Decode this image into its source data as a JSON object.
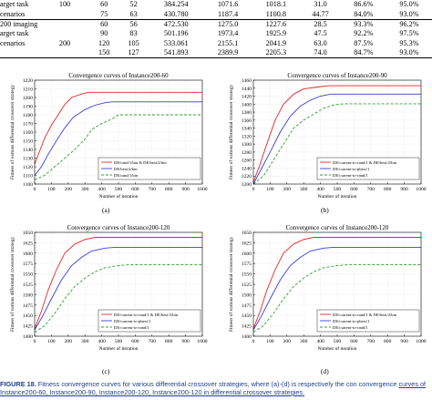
{
  "table": {
    "group_labels": [
      {
        "lines": [
          "arget task",
          "cenarios"
        ],
        "value": "100"
      },
      {
        "lines": [
          "200 imaging",
          "arget task",
          "cenarios"
        ],
        "value": "200"
      }
    ],
    "rows": [
      {
        "label": "",
        "group": "100",
        "cells": [
          "60",
          "52",
          "384.254",
          "1071.6",
          "1018.1",
          "31.0",
          "86.6%",
          "95.0%"
        ]
      },
      {
        "label": "",
        "group": "",
        "cells": [
          "75",
          "63",
          "430.780",
          "1187.4",
          "1100.8",
          "44.77",
          "84.0%",
          "93.0%"
        ]
      },
      {
        "label": "",
        "group": "",
        "cells": [
          "60",
          "56",
          "472.530",
          "1275.0",
          "1227.6",
          "28.5",
          "93.3%",
          "96.2%"
        ]
      },
      {
        "label": "",
        "group": "",
        "cells": [
          "90",
          "83",
          "501.196",
          "1973.4",
          "1925.9",
          "47.5",
          "92.2%",
          "97.5%"
        ]
      },
      {
        "label": "",
        "group": "200",
        "cells": [
          "120",
          "105",
          "533.061",
          "2155.1",
          "2041.9",
          "63.0",
          "87.5%",
          "95.3%"
        ]
      },
      {
        "label": "",
        "group": "",
        "cells": [
          "150",
          "127",
          "541.893",
          "2389.9",
          "2205.3",
          "74.0",
          "84.7%",
          "93.0%"
        ]
      }
    ]
  },
  "legend_colors": {
    "red": "#e8262a",
    "blue": "#3a3fd6",
    "green": "#2ca02c"
  },
  "figures": [
    {
      "sub_label": "(a)",
      "chart_data": {
        "type": "line",
        "title": "Convergence curves of Instance200-60",
        "xlabel": "Number of iteration",
        "ylabel": "Fitness of various differential crossover strategy",
        "xlim": [
          0,
          1000
        ],
        "ylim": [
          1100,
          1220
        ],
        "xticks": [
          "0",
          "100",
          "200",
          "300",
          "400",
          "500",
          "600",
          "700",
          "800",
          "900",
          "1000"
        ],
        "yticks": [
          "1100",
          "1110",
          "1120",
          "1130",
          "1140",
          "1150",
          "1160",
          "1170",
          "1180",
          "1190",
          "1200",
          "1210",
          "1220"
        ],
        "legend_position": "bottom-right",
        "series": [
          {
            "name": "DE/rand/1/bin & DE/best/2/bin",
            "color": "#e8262a",
            "dash": "",
            "points": [
              [
                0,
                1123
              ],
              [
                30,
                1138
              ],
              [
                60,
                1153
              ],
              [
                100,
                1168
              ],
              [
                140,
                1180
              ],
              [
                180,
                1192
              ],
              [
                220,
                1200
              ],
              [
                280,
                1204
              ],
              [
                320,
                1206
              ],
              [
                1000,
                1206
              ]
            ]
          },
          {
            "name": "DE/best/2/bin",
            "color": "#3a3fd6",
            "dash": "",
            "points": [
              [
                0,
                1110
              ],
              [
                40,
                1120
              ],
              [
                80,
                1134
              ],
              [
                130,
                1150
              ],
              [
                180,
                1165
              ],
              [
                230,
                1177
              ],
              [
                300,
                1186
              ],
              [
                360,
                1191
              ],
              [
                420,
                1194
              ],
              [
                460,
                1195
              ],
              [
                1000,
                1195
              ]
            ]
          },
          {
            "name": "DE/rand/1/bin",
            "color": "#2ca02c",
            "dash": "3,2",
            "points": [
              [
                0,
                1105
              ],
              [
                60,
                1110
              ],
              [
                120,
                1120
              ],
              [
                180,
                1130
              ],
              [
                240,
                1140
              ],
              [
                300,
                1152
              ],
              [
                340,
                1163
              ],
              [
                400,
                1170
              ],
              [
                460,
                1175
              ],
              [
                500,
                1180
              ],
              [
                1000,
                1180
              ]
            ]
          }
        ]
      }
    },
    {
      "sub_label": "(b)",
      "chart_data": {
        "type": "line",
        "title": "Convergence curves of Instance200-90",
        "xlabel": "Number of iteration",
        "ylabel": "Fitness of various differential crossover strategy",
        "xlim": [
          0,
          1000
        ],
        "ylim": [
          1200,
          1460
        ],
        "xticks": [
          "0",
          "100",
          "200",
          "300",
          "400",
          "500",
          "600",
          "700",
          "800",
          "900",
          "1000"
        ],
        "yticks": [
          "1200",
          "1220",
          "1240",
          "1260",
          "1280",
          "1300",
          "1320",
          "1340",
          "1360",
          "1380",
          "1400",
          "1420",
          "1440",
          "1460"
        ],
        "legend_position": "bottom-right",
        "series": [
          {
            "name": "DE/current-to-rand/1 & DE/best/2/bin",
            "color": "#e8262a",
            "dash": "",
            "points": [
              [
                0,
                1205
              ],
              [
                40,
                1250
              ],
              [
                80,
                1300
              ],
              [
                130,
                1360
              ],
              [
                180,
                1400
              ],
              [
                240,
                1425
              ],
              [
                300,
                1438
              ],
              [
                380,
                1443
              ],
              [
                450,
                1446
              ],
              [
                1000,
                1446
              ]
            ]
          },
          {
            "name": "DE/current-to-pbest/1",
            "color": "#3a3fd6",
            "dash": "",
            "points": [
              [
                0,
                1200
              ],
              [
                50,
                1240
              ],
              [
                100,
                1280
              ],
              [
                160,
                1330
              ],
              [
                220,
                1370
              ],
              [
                280,
                1395
              ],
              [
                340,
                1410
              ],
              [
                400,
                1420
              ],
              [
                460,
                1425
              ],
              [
                1000,
                1425
              ]
            ]
          },
          {
            "name": "DE/current-to-rand/1",
            "color": "#2ca02c",
            "dash": "3,2",
            "points": [
              [
                0,
                1200
              ],
              [
                60,
                1220
              ],
              [
                120,
                1260
              ],
              [
                180,
                1300
              ],
              [
                240,
                1340
              ],
              [
                300,
                1360
              ],
              [
                360,
                1375
              ],
              [
                420,
                1390
              ],
              [
                480,
                1398
              ],
              [
                540,
                1401
              ],
              [
                1000,
                1401
              ]
            ]
          }
        ]
      }
    },
    {
      "sub_label": "(c)",
      "chart_data": {
        "type": "line",
        "title": "Convergence curves of Instance200-120",
        "xlabel": "Number of iteration",
        "ylabel": "Fitness of various differential crossover strategy",
        "xlim": [
          0,
          1000
        ],
        "ylim": [
          1400,
          1650
        ],
        "xticks": [
          "0",
          "100",
          "200",
          "300",
          "400",
          "500",
          "600",
          "700",
          "800",
          "900",
          "1000"
        ],
        "yticks": [
          "1400",
          "1425",
          "1450",
          "1475",
          "1500",
          "1525",
          "1550",
          "1575",
          "1600",
          "1625",
          "1650"
        ],
        "legend_position": "bottom-right",
        "series": [
          {
            "name": "DE/current-to-rand/1 & DE/best/2/bin",
            "color": "#e8262a",
            "dash": "",
            "points": [
              [
                0,
                1418
              ],
              [
                40,
                1460
              ],
              [
                80,
                1510
              ],
              [
                130,
                1560
              ],
              [
                180,
                1600
              ],
              [
                240,
                1622
              ],
              [
                300,
                1633
              ],
              [
                360,
                1638
              ],
              [
                1000,
                1638
              ]
            ]
          },
          {
            "name": "DE/current-to-pbest/1",
            "color": "#3a3fd6",
            "dash": "",
            "points": [
              [
                0,
                1415
              ],
              [
                50,
                1450
              ],
              [
                100,
                1490
              ],
              [
                160,
                1535
              ],
              [
                220,
                1570
              ],
              [
                280,
                1590
              ],
              [
                340,
                1605
              ],
              [
                420,
                1612
              ],
              [
                480,
                1614
              ],
              [
                1000,
                1614
              ]
            ]
          },
          {
            "name": "DE/current-to-rand/1",
            "color": "#2ca02c",
            "dash": "3,2",
            "points": [
              [
                0,
                1410
              ],
              [
                60,
                1425
              ],
              [
                120,
                1455
              ],
              [
                180,
                1490
              ],
              [
                240,
                1520
              ],
              [
                300,
                1540
              ],
              [
                360,
                1555
              ],
              [
                420,
                1565
              ],
              [
                500,
                1570
              ],
              [
                560,
                1572
              ],
              [
                1000,
                1572
              ]
            ]
          }
        ]
      }
    },
    {
      "sub_label": "(d)",
      "chart_data": {
        "type": "line",
        "title": "Convergence curves of Instance200-120",
        "xlabel": "Number of iteration",
        "ylabel": "Fitness of various differential crossover strategy",
        "xlim": [
          0,
          1000
        ],
        "ylim": [
          1400,
          1650
        ],
        "xticks": [
          "0",
          "100",
          "200",
          "300",
          "400",
          "500",
          "600",
          "700",
          "800",
          "900",
          "1000"
        ],
        "yticks": [
          "1400",
          "1425",
          "1450",
          "1475",
          "1500",
          "1525",
          "1550",
          "1575",
          "1600",
          "1625",
          "1650"
        ],
        "legend_position": "bottom-right",
        "series": [
          {
            "name": "DE/current-to-rand/1 & DE/best/2/bin",
            "color": "#e8262a",
            "dash": "",
            "points": [
              [
                0,
                1418
              ],
              [
                40,
                1460
              ],
              [
                80,
                1510
              ],
              [
                130,
                1560
              ],
              [
                180,
                1600
              ],
              [
                240,
                1622
              ],
              [
                300,
                1633
              ],
              [
                360,
                1638
              ],
              [
                1000,
                1638
              ]
            ]
          },
          {
            "name": "DE/current-to-pbest/1",
            "color": "#3a3fd6",
            "dash": "",
            "points": [
              [
                0,
                1415
              ],
              [
                50,
                1450
              ],
              [
                100,
                1490
              ],
              [
                160,
                1535
              ],
              [
                220,
                1570
              ],
              [
                280,
                1590
              ],
              [
                340,
                1605
              ],
              [
                420,
                1612
              ],
              [
                480,
                1614
              ],
              [
                1000,
                1614
              ]
            ]
          },
          {
            "name": "DE/current-to-rand/1",
            "color": "#2ca02c",
            "dash": "3,2",
            "points": [
              [
                0,
                1410
              ],
              [
                60,
                1425
              ],
              [
                120,
                1455
              ],
              [
                180,
                1490
              ],
              [
                240,
                1520
              ],
              [
                300,
                1540
              ],
              [
                360,
                1555
              ],
              [
                420,
                1565
              ],
              [
                500,
                1570
              ],
              [
                560,
                1572
              ],
              [
                1000,
                1572
              ]
            ]
          }
        ]
      }
    }
  ],
  "caption": {
    "label": "FIGURE 18.",
    "text": " Fitness convergence curves for various differential crossover strategies, where (a)-(d) is respectively the con convergence ",
    "underlined": "curves of Instance200-60, Instance200-90, Instance200-120, Instance200-120 in differential crossover strategies."
  }
}
